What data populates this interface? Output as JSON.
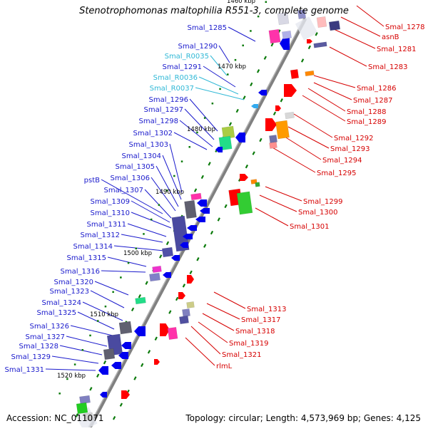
{
  "title": "Stenotrophomonas maltophilia R551-3, complete genome",
  "accession": "Accession: NC_011071",
  "topology": "Topology: circular; Length: 4,573,969 bp; Genes: 4,125",
  "colors": {
    "left_label": "#1a1acc",
    "rna_label": "#2fb8d6",
    "right_label": "#d60000",
    "backbone": "#808080",
    "tick": "#0a7a0a"
  },
  "kbp_labels": [
    "1460 kbp",
    "1470 kbp",
    "1480 kbp",
    "1490 kbp",
    "1500 kbp",
    "1510 kbp",
    "1520 kbp"
  ],
  "left_labels": [
    {
      "text": "Smal_1285",
      "type": "gene"
    },
    {
      "text": "Smal_1290",
      "type": "gene"
    },
    {
      "text": "Smal_R0035",
      "type": "rna"
    },
    {
      "text": "Smal_1291",
      "type": "gene"
    },
    {
      "text": "Smal_R0036",
      "type": "rna"
    },
    {
      "text": "Smal_R0037",
      "type": "rna"
    },
    {
      "text": "Smal_1296",
      "type": "gene"
    },
    {
      "text": "Smal_1297",
      "type": "gene"
    },
    {
      "text": "Smal_1298",
      "type": "gene"
    },
    {
      "text": "Smal_1302",
      "type": "gene"
    },
    {
      "text": "Smal_1303",
      "type": "gene"
    },
    {
      "text": "Smal_1304",
      "type": "gene"
    },
    {
      "text": "Smal_1305",
      "type": "gene"
    },
    {
      "text": "Smal_1306",
      "type": "gene"
    },
    {
      "text": "pstB",
      "type": "gene"
    },
    {
      "text": "Smal_1307",
      "type": "gene"
    },
    {
      "text": "Smal_1309",
      "type": "gene"
    },
    {
      "text": "Smal_1310",
      "type": "gene"
    },
    {
      "text": "Smal_1311",
      "type": "gene"
    },
    {
      "text": "Smal_1312",
      "type": "gene"
    },
    {
      "text": "Smal_1314",
      "type": "gene"
    },
    {
      "text": "Smal_1315",
      "type": "gene"
    },
    {
      "text": "Smal_1316",
      "type": "gene"
    },
    {
      "text": "Smal_1320",
      "type": "gene"
    },
    {
      "text": "Smal_1323",
      "type": "gene"
    },
    {
      "text": "Smal_1324",
      "type": "gene"
    },
    {
      "text": "Smal_1325",
      "type": "gene"
    },
    {
      "text": "Smal_1326",
      "type": "gene"
    },
    {
      "text": "Smal_1327",
      "type": "gene"
    },
    {
      "text": "Smal_1328",
      "type": "gene"
    },
    {
      "text": "Smal_1329",
      "type": "gene"
    },
    {
      "text": "Smal_1331",
      "type": "gene"
    }
  ],
  "right_labels": [
    {
      "text": "Smal_1278"
    },
    {
      "text": "asnB"
    },
    {
      "text": "Smal_1281"
    },
    {
      "text": "Smal_1283"
    },
    {
      "text": "Smal_1286"
    },
    {
      "text": "Smal_1287"
    },
    {
      "text": "Smal_1288"
    },
    {
      "text": "Smal_1289"
    },
    {
      "text": "Smal_1292"
    },
    {
      "text": "Smal_1293"
    },
    {
      "text": "Smal_1294"
    },
    {
      "text": "Smal_1295"
    },
    {
      "text": "Smal_1299"
    },
    {
      "text": "Smal_1300"
    },
    {
      "text": "Smal_1301"
    },
    {
      "text": "Smal_1313"
    },
    {
      "text": "Smal_1317"
    },
    {
      "text": "Smal_1318"
    },
    {
      "text": "Smal_1319"
    },
    {
      "text": "Smal_1321"
    },
    {
      "text": "rlmL"
    }
  ]
}
